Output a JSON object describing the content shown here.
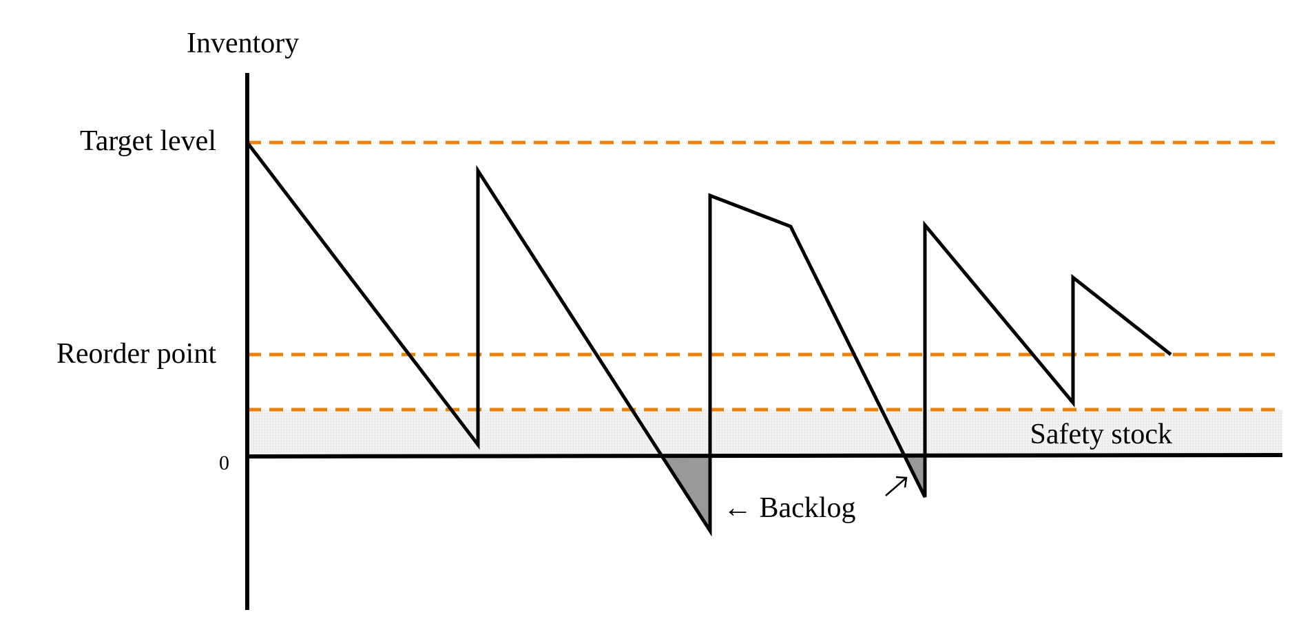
{
  "labels": {
    "y_axis": "Inventory",
    "target_level": "Target level",
    "reorder_point": "Reorder point",
    "zero": "0",
    "safety_stock": "Safety stock",
    "backlog": "← Backlog"
  },
  "colors": {
    "threshold_line": "#e8820c",
    "inventory_line": "#000000",
    "axis": "#000000",
    "backlog_fill": "#999999",
    "safety_band": "#ededed"
  }
}
